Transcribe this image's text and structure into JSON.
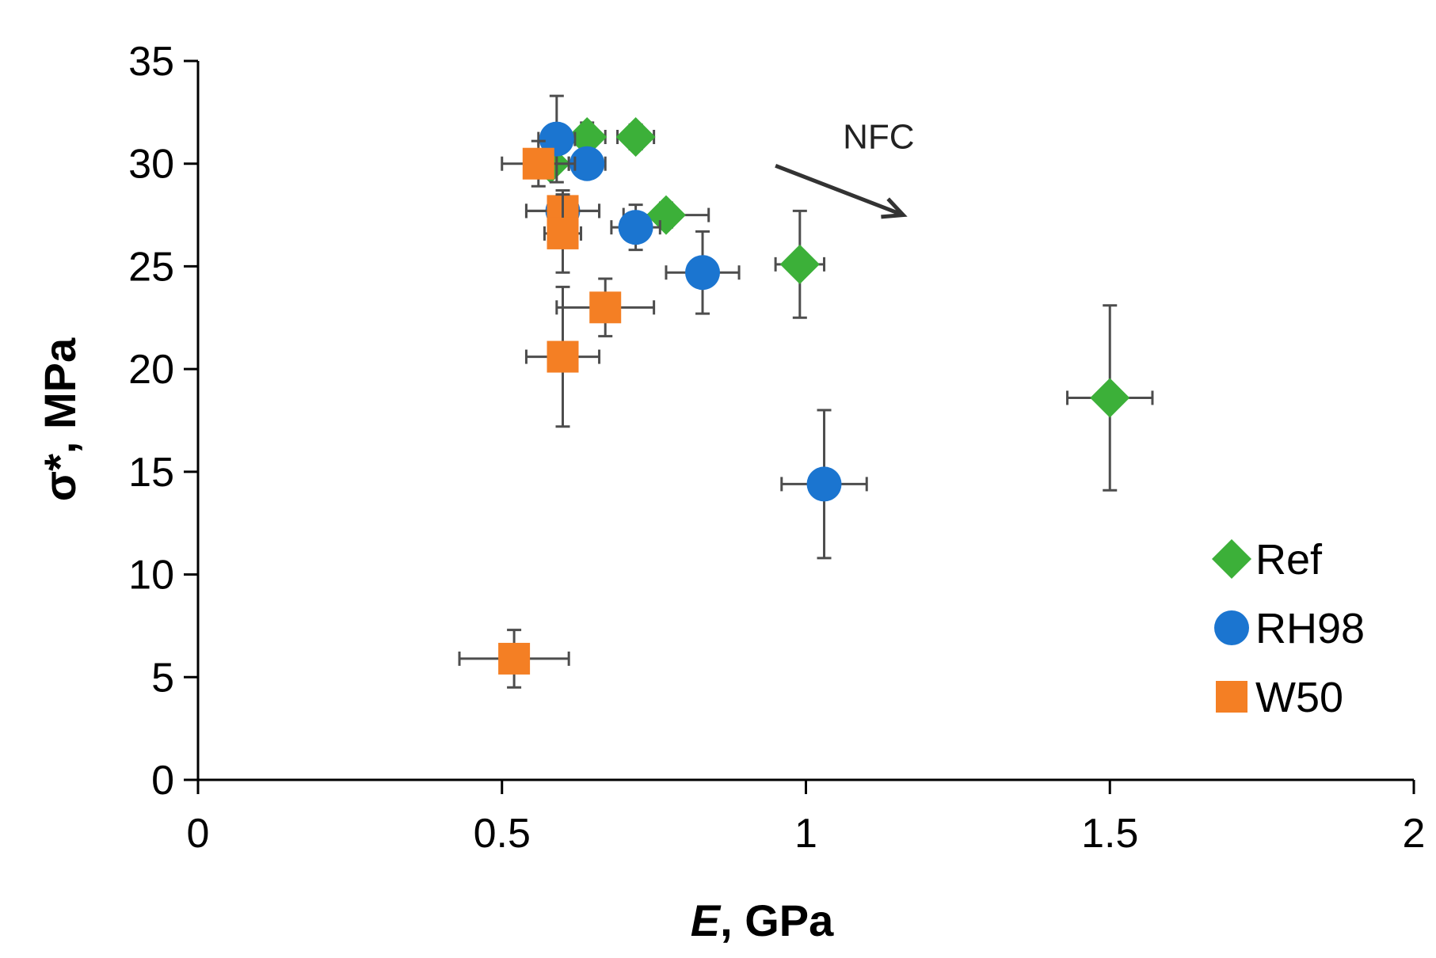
{
  "chart_data": {
    "type": "scatter",
    "title": "",
    "xlabel_italic": "E",
    "xlabel_rest": ", GPa",
    "ylabel": "σ*, MPa",
    "xlim": [
      0,
      2
    ],
    "ylim": [
      0,
      35
    ],
    "x_ticks": [
      0,
      0.5,
      1,
      1.5,
      2
    ],
    "x_tick_labels": [
      "0",
      "0.5",
      "1",
      "1.5",
      "2"
    ],
    "y_ticks": [
      0,
      5,
      10,
      15,
      20,
      25,
      30,
      35
    ],
    "y_tick_labels": [
      "0",
      "5",
      "10",
      "15",
      "20",
      "25",
      "30",
      "35"
    ],
    "grid": false,
    "legend_position": "right",
    "annotation": {
      "text": "NFC",
      "arrow_from": [
        0.95,
        29.9
      ],
      "arrow_to": [
        1.16,
        27.5
      ]
    },
    "series": [
      {
        "name": "Ref",
        "marker": "diamond",
        "color": "#3cb039",
        "points": [
          {
            "x": 0.58,
            "y": 30.0,
            "xerr": 0.03,
            "yerr": 0.6
          },
          {
            "x": 0.64,
            "y": 31.3,
            "xerr": 0.03,
            "yerr": 0.7
          },
          {
            "x": 0.72,
            "y": 31.3,
            "xerr": 0.03,
            "yerr": 0.6
          },
          {
            "x": 0.77,
            "y": 27.5,
            "xerr": 0.07,
            "yerr": 0.6
          },
          {
            "x": 0.99,
            "y": 25.1,
            "xerr": 0.04,
            "yerr": 2.6
          },
          {
            "x": 1.5,
            "y": 18.6,
            "xerr": 0.07,
            "yerr": 4.5
          }
        ]
      },
      {
        "name": "RH98",
        "marker": "circle",
        "color": "#1b75d0",
        "points": [
          {
            "x": 0.59,
            "y": 31.2,
            "xerr": 0.03,
            "yerr": 2.1
          },
          {
            "x": 0.64,
            "y": 30.0,
            "xerr": 0.03,
            "yerr": 0.6
          },
          {
            "x": 0.6,
            "y": 27.7,
            "xerr": 0.06,
            "yerr": 0.6
          },
          {
            "x": 0.72,
            "y": 26.9,
            "xerr": 0.04,
            "yerr": 1.1
          },
          {
            "x": 0.83,
            "y": 24.7,
            "xerr": 0.06,
            "yerr": 2.0
          },
          {
            "x": 1.03,
            "y": 14.4,
            "xerr": 0.07,
            "yerr": 3.6
          }
        ]
      },
      {
        "name": "W50",
        "marker": "square",
        "color": "#f47f24",
        "points": [
          {
            "x": 0.56,
            "y": 30.0,
            "xerr": 0.06,
            "yerr": 1.1
          },
          {
            "x": 0.6,
            "y": 27.7,
            "xerr": 0.06,
            "yerr": 1.0
          },
          {
            "x": 0.6,
            "y": 26.6,
            "xerr": 0.03,
            "yerr": 1.9
          },
          {
            "x": 0.67,
            "y": 23.0,
            "xerr": 0.08,
            "yerr": 1.4
          },
          {
            "x": 0.6,
            "y": 20.6,
            "xerr": 0.06,
            "yerr": 3.4
          },
          {
            "x": 0.52,
            "y": 5.9,
            "xerr": 0.09,
            "yerr": 1.4
          }
        ]
      }
    ]
  }
}
